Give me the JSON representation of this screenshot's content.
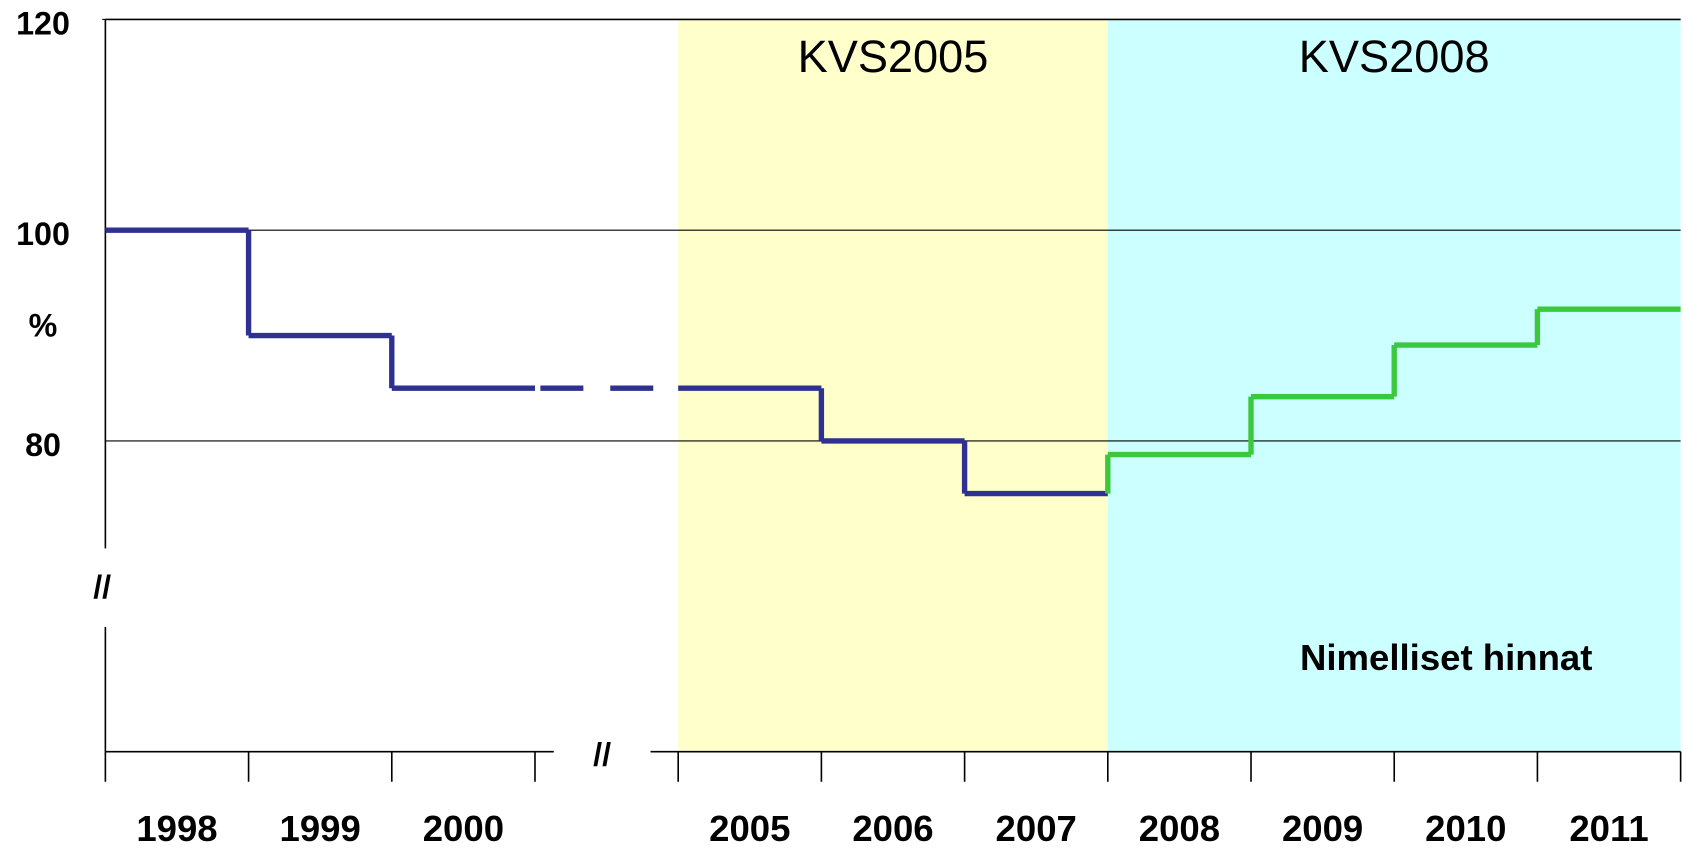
{
  "chart_data": {
    "type": "step",
    "y_label": "%",
    "categories": [
      "1998",
      "1999",
      "2000",
      null,
      "2005",
      "2006",
      "2007",
      "2008",
      "2009",
      "2010",
      "2011"
    ],
    "series": [
      {
        "color": "#2e3192",
        "values": [
          100,
          90,
          85,
          85,
          85,
          80,
          75,
          null,
          null,
          null,
          null
        ]
      },
      {
        "color": "#3cc83c",
        "values": [
          null,
          null,
          null,
          null,
          null,
          null,
          null,
          78.7,
          84.2,
          89.1,
          92.5
        ]
      }
    ],
    "bands": [
      {
        "label": "KVS2005",
        "from": "2005",
        "to": "2007",
        "color": "#ffffcc"
      },
      {
        "label": "KVS2008",
        "from": "2008",
        "to": "2011",
        "color": "#ccffff"
      }
    ],
    "annotation": "Nimelliset hinnat",
    "break_mark": "//",
    "ylim": [
      50,
      120
    ],
    "yticks": [
      80,
      100,
      120
    ],
    "grid": true
  }
}
